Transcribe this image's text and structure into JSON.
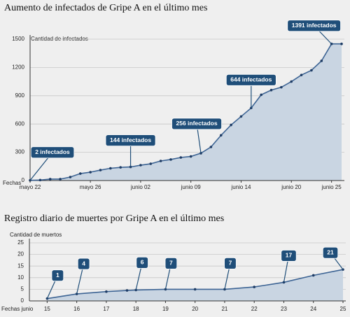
{
  "chart_data": [
    {
      "type": "line",
      "title": "Aumento de infectados de Gripe A en el último mes",
      "y_label": "Cantidad de infectados",
      "x_label": "Fechas",
      "categories": [
        "mayo 22",
        null,
        null,
        null,
        null,
        null,
        "mayo 26",
        null,
        null,
        null,
        null,
        "junio 02",
        null,
        null,
        null,
        null,
        "junio 09",
        null,
        null,
        null,
        null,
        "junio 14",
        null,
        null,
        null,
        null,
        "junio 20",
        null,
        null,
        null,
        "junio 25",
        null
      ],
      "values": [
        2,
        5,
        15,
        15,
        37,
        74,
        89,
        111,
        130,
        140,
        144,
        163,
        178,
        208,
        223,
        245,
        256,
        290,
        356,
        480,
        590,
        680,
        770,
        910,
        960,
        990,
        1050,
        1120,
        1170,
        1270,
        1450,
        1450
      ],
      "color": "#3d6494",
      "fill": "#c9d5e2",
      "ylim": [
        0,
        1500
      ],
      "yticks": [
        0,
        300,
        600,
        900,
        1200,
        1500
      ],
      "grid": true,
      "annotations": [
        "2 infectados",
        "144  infectados",
        "256 infectados",
        "644 infectados",
        "1391 infectados"
      ]
    },
    {
      "type": "line",
      "title": "Registro diario de muertes por Gripe A en el último mes",
      "y_label": "Cantidad de muertos",
      "x_label": "Fechas junio",
      "x": [
        15,
        16,
        17,
        17.7,
        18,
        19,
        20,
        21,
        22,
        23,
        24,
        25
      ],
      "values": [
        1,
        3,
        4,
        4.5,
        4.7,
        5,
        5,
        5,
        6,
        8,
        11,
        13.5
      ],
      "color": "#3d6494",
      "fill": "#c9d5e2",
      "xlim": [
        14.4,
        25
      ],
      "xticks": [
        15,
        16,
        17,
        18,
        19,
        20,
        21,
        22,
        23,
        24,
        25
      ],
      "ylim": [
        0,
        25
      ],
      "yticks": [
        0,
        5,
        10,
        15,
        20,
        25
      ],
      "grid": true,
      "annotations": [
        "1",
        "4",
        "6",
        "7",
        "7",
        "17",
        "21"
      ]
    }
  ]
}
